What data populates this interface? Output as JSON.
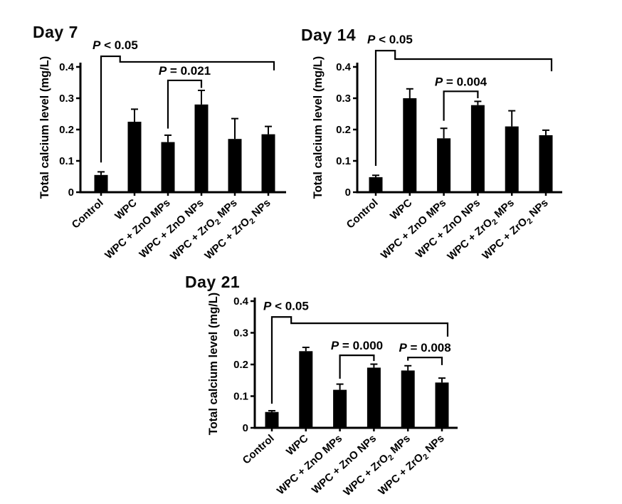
{
  "page": {
    "background": "#ffffff",
    "ink_color": "#000000"
  },
  "chart_data": [
    {
      "type": "bar",
      "title": "Day 7",
      "ylabel": "Total calcium level (mg/L)",
      "xlabel": "",
      "ylim": [
        0,
        0.4
      ],
      "ytick_values": [
        0,
        0.1,
        0.2,
        0.3,
        0.4
      ],
      "ytick_labels": [
        "0",
        "0.1",
        "0.2",
        "0.3",
        "0.4"
      ],
      "grid": false,
      "bar_color": "#000000",
      "categories": [
        "Control",
        "WPC",
        "WPC + ZnO MPs",
        "WPC + ZnO NPs",
        "WPC + ZrO~2~ MPs",
        "WPC + ZrO~2~ NPs"
      ],
      "values": [
        0.055,
        0.225,
        0.16,
        0.28,
        0.17,
        0.185
      ],
      "errors": [
        0.01,
        0.04,
        0.022,
        0.045,
        0.065,
        0.025
      ],
      "significance": [
        {
          "type": "main",
          "label": "P < 0.05",
          "from": 0,
          "to": 5,
          "y_top": 0.434,
          "y_long": 0.416,
          "left_drop_to": 0.095,
          "right_drop_to": 0.389
        },
        {
          "type": "pair",
          "label": "P = 0.021",
          "from": 2,
          "to": 3,
          "y": 0.357,
          "left_drop_to": 0.203,
          "right_drop_to": 0.333
        }
      ]
    },
    {
      "type": "bar",
      "title": "Day 14",
      "ylabel": "Total calcium level (mg/L)",
      "xlabel": "",
      "ylim": [
        0,
        0.4
      ],
      "ytick_values": [
        0,
        0.1,
        0.2,
        0.3,
        0.4
      ],
      "ytick_labels": [
        "0",
        "0.1",
        "0.2",
        "0.3",
        "0.4"
      ],
      "grid": false,
      "bar_color": "#000000",
      "categories": [
        "Control",
        "WPC",
        "WPC + ZnO MPs",
        "WPC + ZnO NPs",
        "WPC + ZrO~2~ MPs",
        "WPC + ZrO~2~ NPs"
      ],
      "values": [
        0.048,
        0.3,
        0.172,
        0.278,
        0.21,
        0.182
      ],
      "errors": [
        0.006,
        0.03,
        0.032,
        0.012,
        0.05,
        0.016
      ],
      "significance": [
        {
          "type": "main",
          "label": "P < 0.05",
          "from": 0,
          "to": 5,
          "y_top": 0.452,
          "y_long": 0.425,
          "left_drop_to": 0.084,
          "right_drop_to": 0.386
        },
        {
          "type": "pair",
          "label": "P = 0.004",
          "from": 2,
          "to": 3,
          "y": 0.322,
          "left_drop_to": 0.228,
          "right_drop_to": 0.3
        }
      ]
    },
    {
      "type": "bar",
      "title": "Day 21",
      "ylabel": "Total calcium level (mg/L)",
      "xlabel": "",
      "ylim": [
        0,
        0.4
      ],
      "ytick_values": [
        0,
        0.1,
        0.2,
        0.3,
        0.4
      ],
      "ytick_labels": [
        "0",
        "0.1",
        "0.2",
        "0.3",
        "0.4"
      ],
      "grid": false,
      "bar_color": "#000000",
      "categories": [
        "Control",
        "WPC",
        "WPC + ZnO MPs",
        "WPC + ZnO NPs",
        "WPC + ZrO~2~ MPs",
        "WPC + ZrO~2~ NPs"
      ],
      "values": [
        0.05,
        0.242,
        0.12,
        0.19,
        0.181,
        0.143
      ],
      "errors": [
        0.004,
        0.012,
        0.018,
        0.011,
        0.015,
        0.014
      ],
      "significance": [
        {
          "type": "main",
          "label": "P < 0.05",
          "from": 0,
          "to": 5,
          "y_top": 0.35,
          "y_long": 0.33,
          "left_drop_to": 0.076,
          "right_drop_to": 0.288
        },
        {
          "type": "pair",
          "label": "P = 0.000",
          "from": 2,
          "to": 3,
          "y": 0.229,
          "left_drop_to": 0.155,
          "right_drop_to": 0.211
        },
        {
          "type": "pair",
          "label": "P = 0.008",
          "from": 4,
          "to": 5,
          "y": 0.222,
          "left_drop_to": 0.212,
          "right_drop_to": 0.198
        }
      ]
    }
  ]
}
